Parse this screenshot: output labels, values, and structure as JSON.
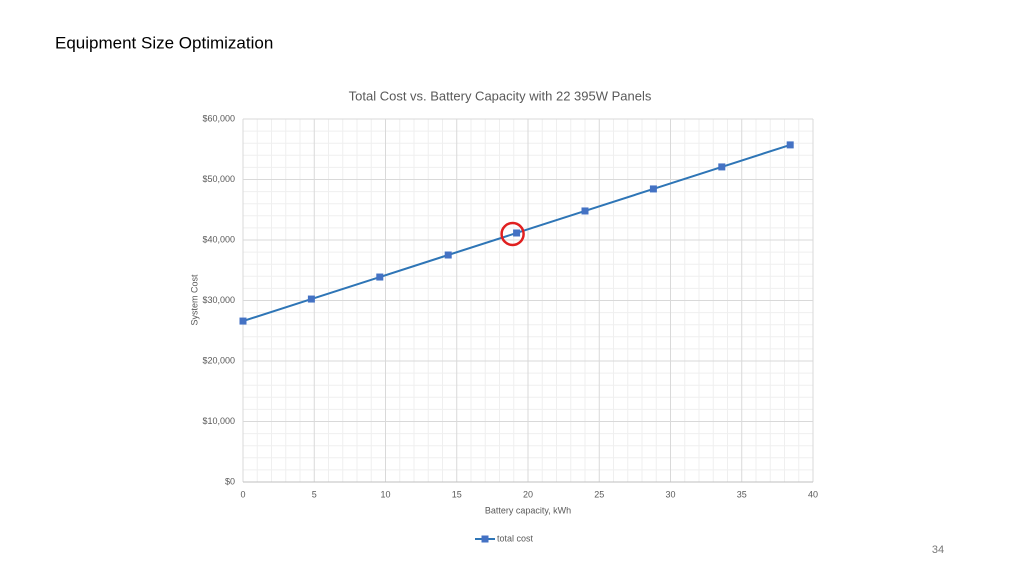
{
  "slide": {
    "title": "Equipment Size Optimization",
    "page_number": "34"
  },
  "chart_data": {
    "type": "line",
    "title": "Total Cost vs. Battery Capacity with 22 395W Panels",
    "x_label": "Battery capacity, kWh",
    "y_label": "System Cost",
    "x": [
      0,
      4.8,
      9.6,
      14.4,
      19.2,
      24.0,
      28.8,
      33.6,
      38.4
    ],
    "series": [
      {
        "name": "total cost",
        "color": "#2e75b6",
        "values": [
          26600,
          30240,
          33880,
          37520,
          41160,
          44800,
          48440,
          52080,
          55720
        ]
      }
    ],
    "xlim": [
      0,
      40
    ],
    "xticks": [
      0,
      5,
      10,
      15,
      20,
      25,
      30,
      35,
      40
    ],
    "ylim": [
      0,
      60000
    ],
    "yticks": [
      {
        "value": 0,
        "label": "$0"
      },
      {
        "value": 10000,
        "label": "$10,000"
      },
      {
        "value": 20000,
        "label": "$20,000"
      },
      {
        "value": 30000,
        "label": "$30,000"
      },
      {
        "value": 40000,
        "label": "$40,000"
      },
      {
        "value": 50000,
        "label": "$50,000"
      },
      {
        "value": 60000,
        "label": "$60,000"
      }
    ],
    "grid": true,
    "minor_grid": true,
    "legend": "bottom",
    "highlight_index": 4,
    "highlight_color": "#e02020"
  }
}
